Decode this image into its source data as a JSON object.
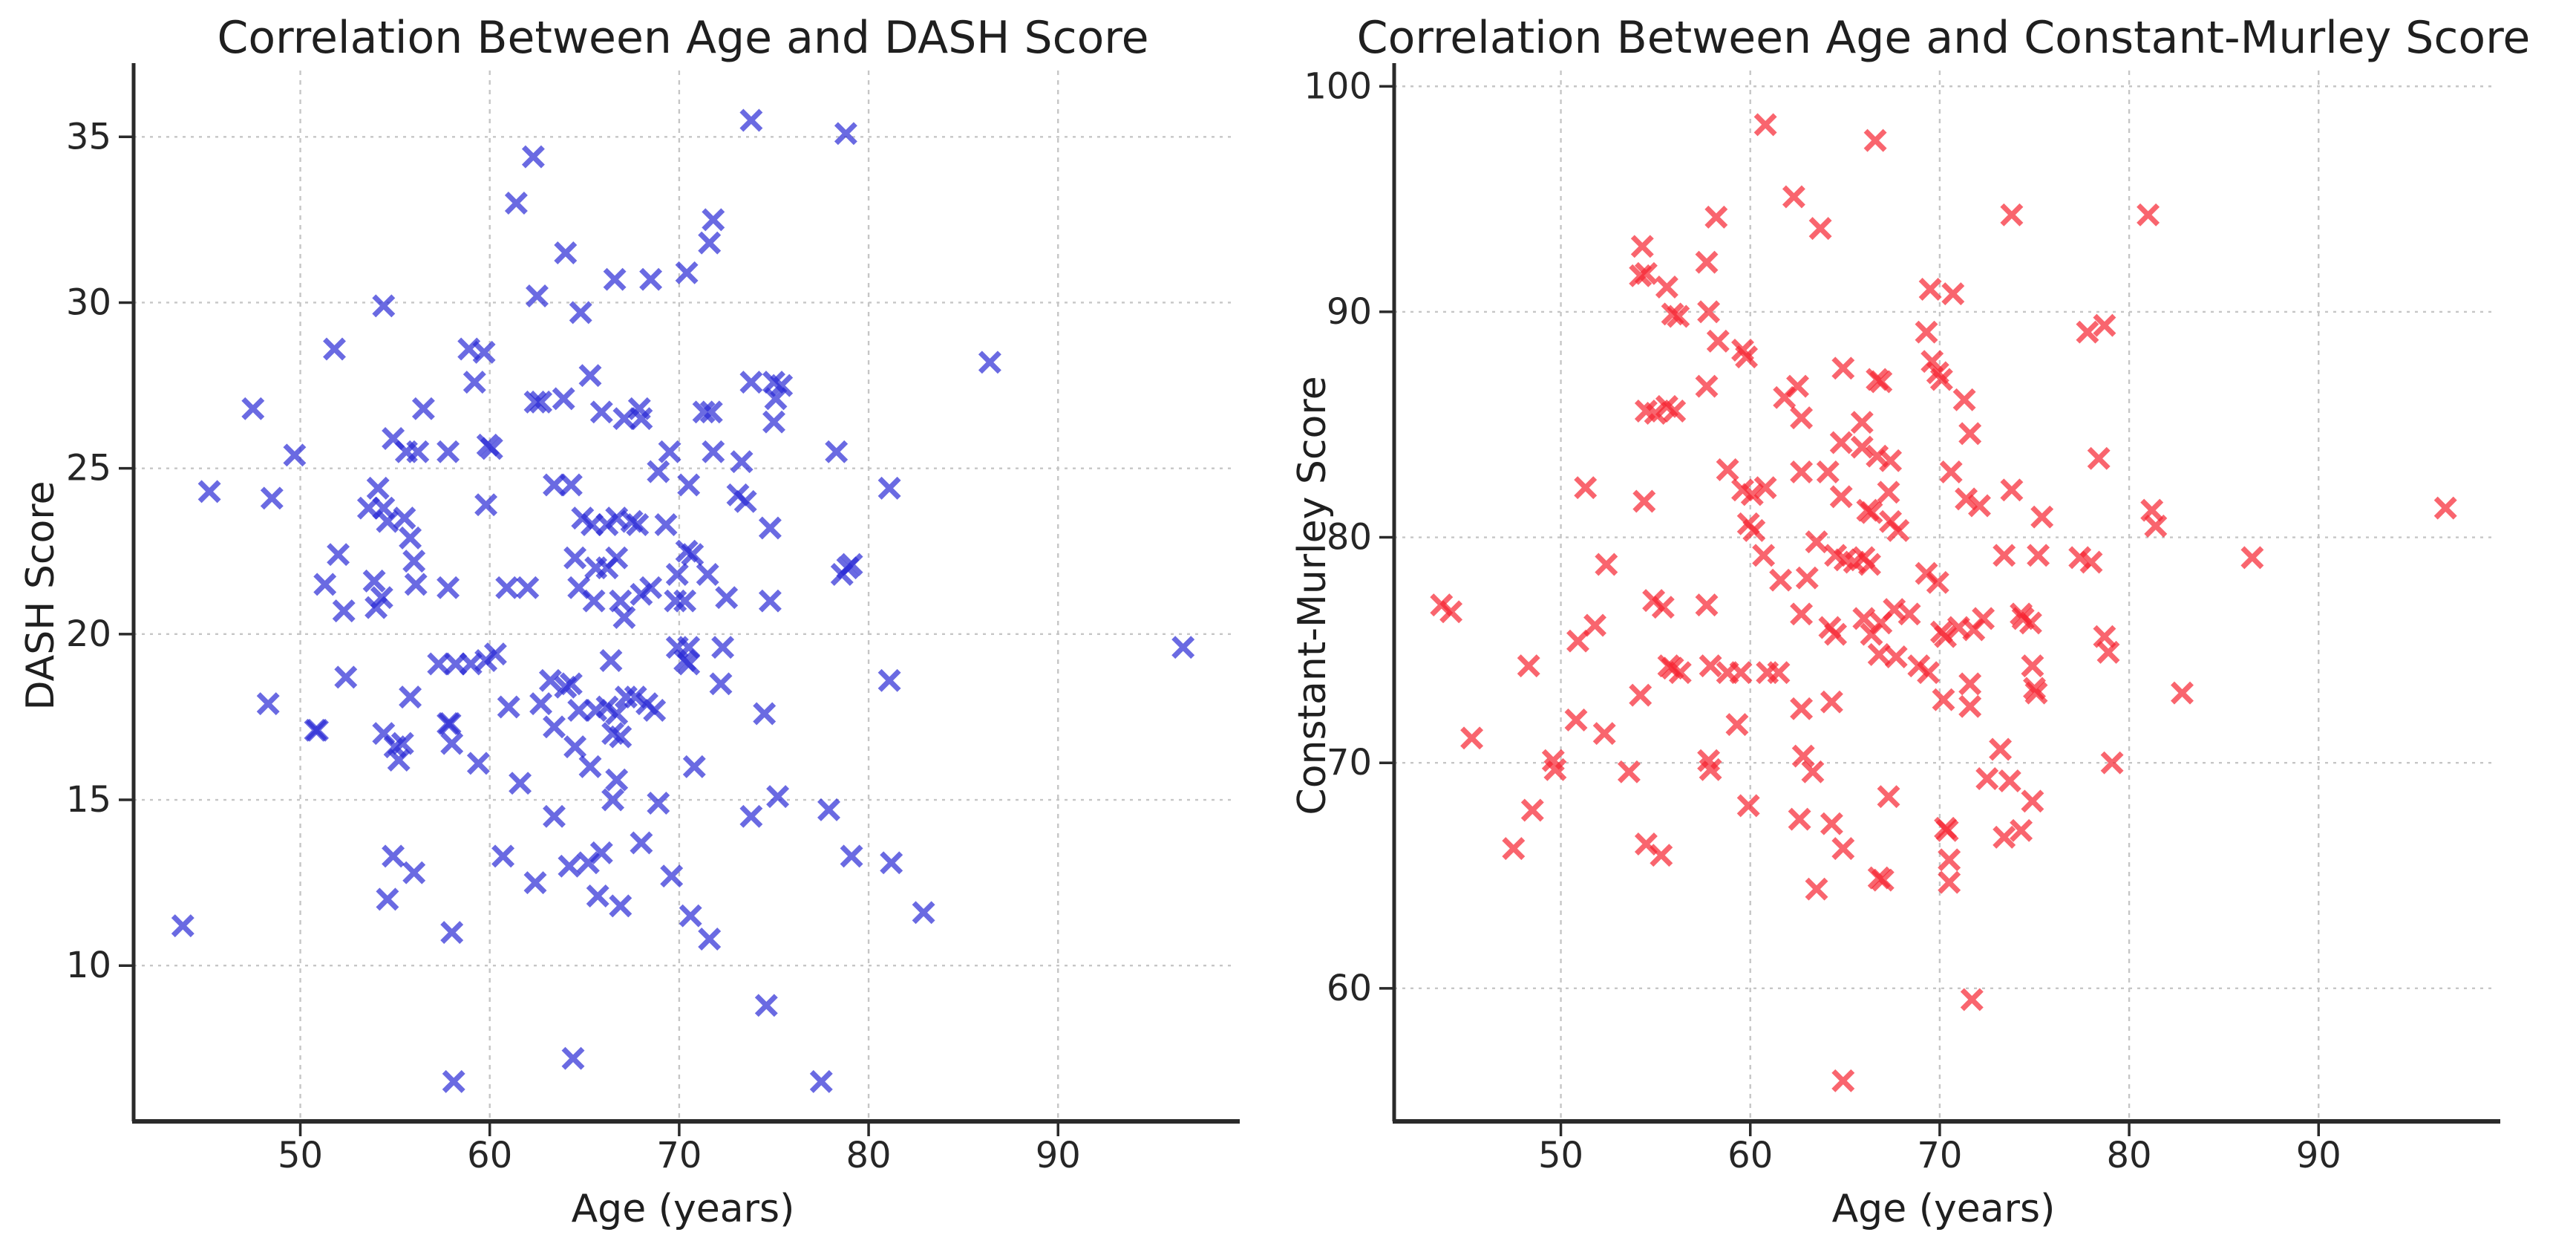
{
  "figure": {
    "background": "#ffffff",
    "text_color": "#262626",
    "grid_color": "#c6c6c6",
    "spine_color": "#2a2a2a"
  },
  "chart_data": [
    {
      "type": "scatter",
      "title": "Correlation Between Age and DASH Score",
      "xlabel": "Age (years)",
      "ylabel": "DASH Score",
      "marker": "x",
      "color": "#2b2bd5",
      "marker_opacity": 0.7,
      "grid": true,
      "legend": "none",
      "xlim": [
        41.2,
        99.2
      ],
      "ylim": [
        5.3,
        37.0
      ],
      "xticks": [
        50,
        60,
        70,
        80,
        90
      ],
      "yticks": [
        10,
        15,
        20,
        25,
        30,
        35
      ],
      "points": [
        [
          62.3,
          34.4
        ],
        [
          61.4,
          33.0
        ],
        [
          64.0,
          31.5
        ],
        [
          66.6,
          30.7
        ],
        [
          68.5,
          30.7
        ],
        [
          62.5,
          30.2
        ],
        [
          54.4,
          29.9
        ],
        [
          64.8,
          29.7
        ],
        [
          51.8,
          28.6
        ],
        [
          58.9,
          28.6
        ],
        [
          59.7,
          28.5
        ],
        [
          59.2,
          27.6
        ],
        [
          62.4,
          27.0
        ],
        [
          62.7,
          27.0
        ],
        [
          63.9,
          27.1
        ],
        [
          65.3,
          27.8
        ],
        [
          56.5,
          26.8
        ],
        [
          47.5,
          26.8
        ],
        [
          49.7,
          25.4
        ],
        [
          54.9,
          25.9
        ],
        [
          55.6,
          25.5
        ],
        [
          56.2,
          25.5
        ],
        [
          57.8,
          25.5
        ],
        [
          59.9,
          25.7
        ],
        [
          60.1,
          25.6
        ],
        [
          65.9,
          26.7
        ],
        [
          67.9,
          26.8
        ],
        [
          67.1,
          26.5
        ],
        [
          68.0,
          26.5
        ],
        [
          45.2,
          24.3
        ],
        [
          48.5,
          24.1
        ],
        [
          52.0,
          22.4
        ],
        [
          54.1,
          24.4
        ],
        [
          54.4,
          23.8
        ],
        [
          54.6,
          23.4
        ],
        [
          53.6,
          23.8
        ],
        [
          55.5,
          23.5
        ],
        [
          55.8,
          22.9
        ],
        [
          56.0,
          22.2
        ],
        [
          59.8,
          23.9
        ],
        [
          60.9,
          21.4
        ],
        [
          62.0,
          21.4
        ],
        [
          51.3,
          21.5
        ],
        [
          53.9,
          21.6
        ],
        [
          54.3,
          21.1
        ],
        [
          56.1,
          21.5
        ],
        [
          57.8,
          21.4
        ],
        [
          63.4,
          24.5
        ],
        [
          64.3,
          24.5
        ],
        [
          64.9,
          23.5
        ],
        [
          65.4,
          23.3
        ],
        [
          66.2,
          23.3
        ],
        [
          66.7,
          23.5
        ],
        [
          67.5,
          23.4
        ],
        [
          67.8,
          23.3
        ],
        [
          64.5,
          22.3
        ],
        [
          65.6,
          22.0
        ],
        [
          66.2,
          22.0
        ],
        [
          66.7,
          22.3
        ],
        [
          69.3,
          23.3
        ],
        [
          68.9,
          24.9
        ],
        [
          73.8,
          35.5
        ],
        [
          78.8,
          35.1
        ],
        [
          71.8,
          32.5
        ],
        [
          71.6,
          31.8
        ],
        [
          70.4,
          30.9
        ],
        [
          86.4,
          28.2
        ],
        [
          73.8,
          27.6
        ],
        [
          75.0,
          27.6
        ],
        [
          75.4,
          27.5
        ],
        [
          75.1,
          27.1
        ],
        [
          71.3,
          26.7
        ],
        [
          71.7,
          26.7
        ],
        [
          75.0,
          26.4
        ],
        [
          78.3,
          25.5
        ],
        [
          69.5,
          25.5
        ],
        [
          71.8,
          25.5
        ],
        [
          73.3,
          25.2
        ],
        [
          70.5,
          24.5
        ],
        [
          73.1,
          24.2
        ],
        [
          73.5,
          24.0
        ],
        [
          81.1,
          24.4
        ],
        [
          74.8,
          23.2
        ],
        [
          70.4,
          22.5
        ],
        [
          70.7,
          22.4
        ],
        [
          69.9,
          21.8
        ],
        [
          71.5,
          21.8
        ],
        [
          78.6,
          21.8
        ],
        [
          78.9,
          22.0
        ],
        [
          79.1,
          22.1
        ],
        [
          52.3,
          20.7
        ],
        [
          54.0,
          20.8
        ],
        [
          64.7,
          21.4
        ],
        [
          65.5,
          21.0
        ],
        [
          66.9,
          21.0
        ],
        [
          68.0,
          21.2
        ],
        [
          68.5,
          21.4
        ],
        [
          67.1,
          20.5
        ],
        [
          57.3,
          19.1
        ],
        [
          58.2,
          19.1
        ],
        [
          59.0,
          19.1
        ],
        [
          59.8,
          19.2
        ],
        [
          60.3,
          19.4
        ],
        [
          52.4,
          18.7
        ],
        [
          48.3,
          17.9
        ],
        [
          55.8,
          18.1
        ],
        [
          50.8,
          17.1
        ],
        [
          50.9,
          17.1
        ],
        [
          54.4,
          17.0
        ],
        [
          55.0,
          16.6
        ],
        [
          55.4,
          16.7
        ],
        [
          55.2,
          16.2
        ],
        [
          57.8,
          17.3
        ],
        [
          57.9,
          17.3
        ],
        [
          58.0,
          16.7
        ],
        [
          59.4,
          16.1
        ],
        [
          61.0,
          17.8
        ],
        [
          61.6,
          15.5
        ],
        [
          62.7,
          17.9
        ],
        [
          63.4,
          17.2
        ],
        [
          63.2,
          18.6
        ],
        [
          64.3,
          18.5
        ],
        [
          64.0,
          18.4
        ],
        [
          64.7,
          17.7
        ],
        [
          66.4,
          19.2
        ],
        [
          65.6,
          17.7
        ],
        [
          66.2,
          17.8
        ],
        [
          66.7,
          17.6
        ],
        [
          67.2,
          18.1
        ],
        [
          67.7,
          18.1
        ],
        [
          68.3,
          17.9
        ],
        [
          68.7,
          17.7
        ],
        [
          66.5,
          17.0
        ],
        [
          66.9,
          16.9
        ],
        [
          64.5,
          16.6
        ],
        [
          65.3,
          16.0
        ],
        [
          66.7,
          15.6
        ],
        [
          66.5,
          15.0
        ],
        [
          68.9,
          14.9
        ],
        [
          63.4,
          14.5
        ],
        [
          54.9,
          13.3
        ],
        [
          56.0,
          12.8
        ],
        [
          54.6,
          12.0
        ],
        [
          60.7,
          13.3
        ],
        [
          62.4,
          12.5
        ],
        [
          64.2,
          13.0
        ],
        [
          65.2,
          13.1
        ],
        [
          65.9,
          13.4
        ],
        [
          65.7,
          12.1
        ],
        [
          66.9,
          11.8
        ],
        [
          43.8,
          11.2
        ],
        [
          58.0,
          11.0
        ],
        [
          64.4,
          7.2
        ],
        [
          58.1,
          6.5
        ],
        [
          68.0,
          13.7
        ],
        [
          69.6,
          12.7
        ],
        [
          69.8,
          21.0
        ],
        [
          70.3,
          21.0
        ],
        [
          72.5,
          21.1
        ],
        [
          74.8,
          21.0
        ],
        [
          69.9,
          19.6
        ],
        [
          70.5,
          19.6
        ],
        [
          70.3,
          19.2
        ],
        [
          70.5,
          19.1
        ],
        [
          72.3,
          19.6
        ],
        [
          96.6,
          19.6
        ],
        [
          81.1,
          18.6
        ],
        [
          72.2,
          18.5
        ],
        [
          74.5,
          17.6
        ],
        [
          70.8,
          16.0
        ],
        [
          75.2,
          15.1
        ],
        [
          73.8,
          14.5
        ],
        [
          77.9,
          14.7
        ],
        [
          79.1,
          13.3
        ],
        [
          81.2,
          13.1
        ],
        [
          82.9,
          11.6
        ],
        [
          70.6,
          11.5
        ],
        [
          71.6,
          10.8
        ],
        [
          74.6,
          8.8
        ],
        [
          77.5,
          6.5
        ]
      ]
    },
    {
      "type": "scatter",
      "title": "Correlation Between Age and Constant-Murley Score",
      "xlabel": "Age (years)",
      "ylabel": "Constant-Murley Score",
      "marker": "x",
      "color": "#f62430",
      "marker_opacity": 0.7,
      "grid": true,
      "legend": "none",
      "xlim": [
        41.2,
        99.2
      ],
      "ylim": [
        54.1,
        100.7
      ],
      "xticks": [
        50,
        60,
        70,
        80,
        90
      ],
      "yticks": [
        60,
        70,
        80,
        90,
        100
      ],
      "points": [
        [
          60.8,
          98.3
        ],
        [
          66.6,
          97.6
        ],
        [
          62.3,
          95.1
        ],
        [
          63.7,
          93.7
        ],
        [
          58.2,
          94.2
        ],
        [
          54.3,
          92.9
        ],
        [
          57.7,
          92.2
        ],
        [
          54.2,
          91.6
        ],
        [
          54.5,
          91.7
        ],
        [
          55.6,
          91.1
        ],
        [
          55.9,
          89.9
        ],
        [
          56.2,
          89.8
        ],
        [
          57.8,
          90.0
        ],
        [
          58.3,
          88.7
        ],
        [
          59.6,
          88.3
        ],
        [
          59.8,
          88.0
        ],
        [
          57.7,
          86.7
        ],
        [
          54.5,
          85.6
        ],
        [
          55.0,
          85.5
        ],
        [
          55.6,
          85.8
        ],
        [
          56.0,
          85.6
        ],
        [
          61.8,
          86.2
        ],
        [
          62.5,
          86.7
        ],
        [
          62.7,
          85.3
        ],
        [
          64.9,
          87.5
        ],
        [
          66.7,
          87.0
        ],
        [
          66.9,
          86.9
        ],
        [
          65.9,
          85.1
        ],
        [
          64.8,
          84.2
        ],
        [
          65.9,
          84.0
        ],
        [
          66.7,
          83.6
        ],
        [
          67.4,
          83.4
        ],
        [
          58.8,
          83.0
        ],
        [
          59.6,
          82.1
        ],
        [
          60.1,
          81.9
        ],
        [
          60.8,
          82.2
        ],
        [
          62.7,
          82.9
        ],
        [
          64.1,
          82.9
        ],
        [
          51.3,
          82.2
        ],
        [
          54.4,
          81.6
        ],
        [
          64.8,
          81.8
        ],
        [
          66.2,
          81.2
        ],
        [
          66.4,
          81.1
        ],
        [
          67.3,
          82.0
        ],
        [
          67.4,
          80.7
        ],
        [
          67.8,
          80.3
        ],
        [
          59.9,
          80.6
        ],
        [
          60.2,
          80.3
        ],
        [
          63.5,
          79.8
        ],
        [
          64.5,
          79.2
        ],
        [
          65.0,
          79.0
        ],
        [
          65.5,
          78.9
        ],
        [
          66.0,
          79.1
        ],
        [
          66.3,
          78.8
        ],
        [
          60.7,
          79.2
        ],
        [
          61.6,
          78.1
        ],
        [
          63.0,
          78.2
        ],
        [
          52.4,
          78.8
        ],
        [
          73.8,
          94.3
        ],
        [
          81.0,
          94.3
        ],
        [
          69.5,
          91.0
        ],
        [
          70.7,
          90.8
        ],
        [
          77.8,
          89.1
        ],
        [
          78.7,
          89.4
        ],
        [
          69.3,
          89.1
        ],
        [
          69.6,
          87.8
        ],
        [
          69.9,
          87.3
        ],
        [
          70.1,
          87.0
        ],
        [
          71.3,
          86.1
        ],
        [
          71.6,
          84.6
        ],
        [
          78.4,
          83.5
        ],
        [
          70.6,
          82.9
        ],
        [
          71.4,
          81.7
        ],
        [
          72.1,
          81.4
        ],
        [
          73.8,
          82.1
        ],
        [
          75.4,
          80.9
        ],
        [
          81.2,
          81.2
        ],
        [
          81.4,
          80.5
        ],
        [
          96.7,
          81.3
        ],
        [
          86.5,
          79.1
        ],
        [
          73.4,
          79.2
        ],
        [
          75.2,
          79.2
        ],
        [
          77.4,
          79.1
        ],
        [
          78.0,
          78.9
        ],
        [
          69.3,
          78.4
        ],
        [
          69.9,
          78.0
        ],
        [
          43.7,
          77.0
        ],
        [
          44.2,
          76.7
        ],
        [
          48.3,
          74.3
        ],
        [
          50.9,
          75.4
        ],
        [
          51.8,
          76.1
        ],
        [
          54.9,
          77.2
        ],
        [
          55.4,
          76.9
        ],
        [
          57.7,
          77.0
        ],
        [
          60.9,
          74.0
        ],
        [
          55.7,
          74.3
        ],
        [
          55.9,
          74.2
        ],
        [
          56.3,
          74.0
        ],
        [
          57.9,
          74.3
        ],
        [
          58.8,
          74.0
        ],
        [
          59.5,
          74.0
        ],
        [
          54.2,
          73.0
        ],
        [
          50.8,
          71.9
        ],
        [
          52.3,
          71.3
        ],
        [
          45.3,
          71.1
        ],
        [
          59.3,
          71.7
        ],
        [
          49.6,
          70.1
        ],
        [
          49.7,
          69.7
        ],
        [
          53.6,
          69.6
        ],
        [
          57.8,
          70.1
        ],
        [
          57.9,
          69.7
        ],
        [
          59.9,
          68.1
        ],
        [
          48.5,
          67.9
        ],
        [
          47.5,
          66.2
        ],
        [
          54.5,
          66.4
        ],
        [
          55.3,
          65.9
        ],
        [
          63.5,
          64.4
        ],
        [
          64.9,
          55.9
        ],
        [
          61.5,
          74.0
        ],
        [
          62.7,
          72.4
        ],
        [
          64.3,
          72.7
        ],
        [
          62.8,
          70.3
        ],
        [
          63.3,
          69.6
        ],
        [
          62.6,
          67.5
        ],
        [
          64.3,
          67.3
        ],
        [
          64.9,
          66.2
        ],
        [
          67.3,
          68.5
        ],
        [
          66.8,
          64.9
        ],
        [
          67.0,
          64.8
        ],
        [
          62.7,
          76.6
        ],
        [
          64.2,
          76.0
        ],
        [
          66.0,
          76.4
        ],
        [
          66.4,
          75.7
        ],
        [
          66.9,
          76.2
        ],
        [
          67.6,
          76.8
        ],
        [
          68.4,
          76.6
        ],
        [
          64.5,
          75.7
        ],
        [
          66.8,
          74.8
        ],
        [
          67.7,
          74.7
        ],
        [
          68.9,
          74.3
        ],
        [
          70.1,
          75.8
        ],
        [
          70.3,
          75.6
        ],
        [
          71.0,
          76.0
        ],
        [
          71.8,
          75.9
        ],
        [
          72.3,
          76.4
        ],
        [
          74.3,
          76.6
        ],
        [
          74.4,
          76.4
        ],
        [
          74.8,
          76.2
        ],
        [
          78.7,
          75.6
        ],
        [
          78.9,
          74.9
        ],
        [
          69.4,
          74.0
        ],
        [
          70.2,
          72.8
        ],
        [
          71.6,
          73.5
        ],
        [
          71.6,
          72.5
        ],
        [
          74.9,
          74.3
        ],
        [
          75.0,
          73.3
        ],
        [
          75.1,
          73.1
        ],
        [
          82.8,
          73.1
        ],
        [
          73.2,
          70.6
        ],
        [
          79.1,
          70.0
        ],
        [
          72.5,
          69.3
        ],
        [
          73.7,
          69.2
        ],
        [
          74.9,
          68.3
        ],
        [
          70.3,
          67.1
        ],
        [
          70.4,
          67.0
        ],
        [
          73.4,
          66.7
        ],
        [
          74.3,
          67.0
        ],
        [
          70.5,
          65.7
        ],
        [
          70.5,
          64.7
        ],
        [
          71.7,
          59.5
        ]
      ]
    }
  ]
}
